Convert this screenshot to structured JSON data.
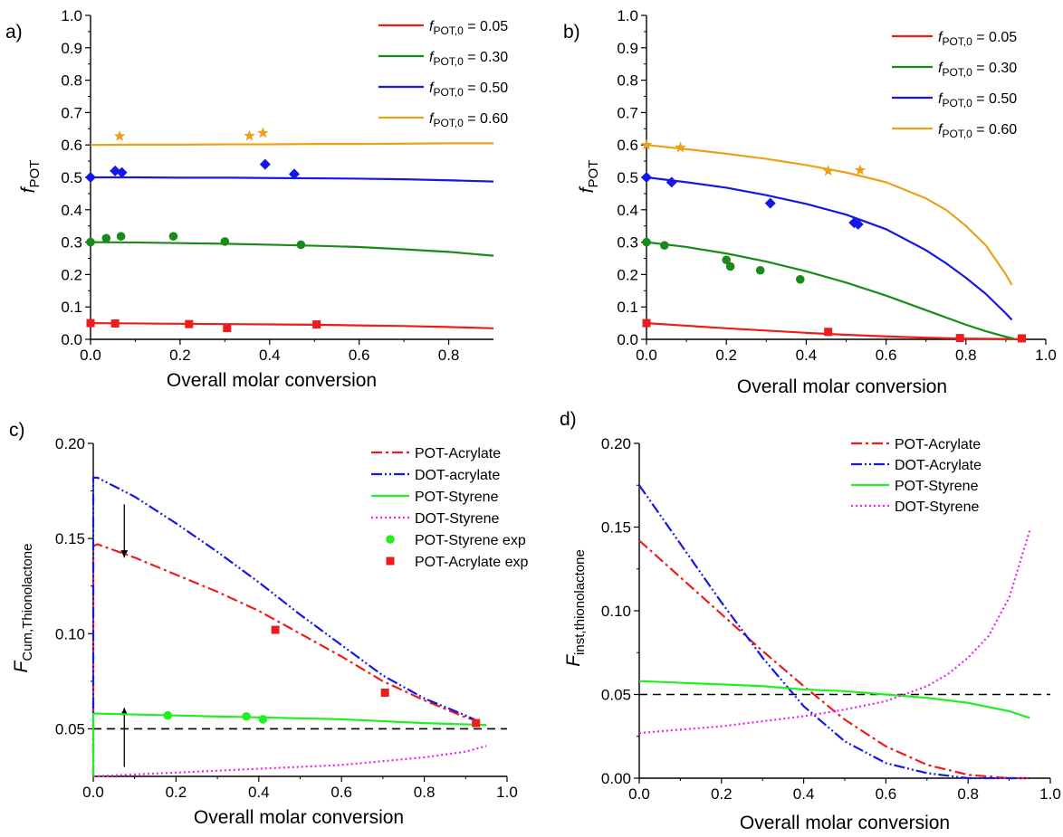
{
  "figure": {
    "colors": {
      "red": "#ee1c1c",
      "green": "#1a8a1a",
      "blue": "#1616e6",
      "orange": "#eaa21a",
      "bright_green": "#22ee22",
      "magenta": "#ee22ee",
      "black": "#000000"
    }
  },
  "chart_data": [
    {
      "panel_label": "a)",
      "type": "line",
      "xlabel": "Overall molar conversion",
      "ylabel_main": "f",
      "ylabel_sub": "POT",
      "xlim": [
        0,
        0.9
      ],
      "ylim": [
        0,
        1.0
      ],
      "xticks": [
        0,
        0.2,
        0.4,
        0.6,
        0.8
      ],
      "xtick_labels": [
        "0.0",
        "0.2",
        "0.4",
        "0.6",
        "0.8"
      ],
      "yticks": [
        0,
        0.1,
        0.2,
        0.3,
        0.4,
        0.5,
        0.6,
        0.7,
        0.8,
        0.9,
        1.0
      ],
      "ytick_labels": [
        "0.0",
        "0.1",
        "0.2",
        "0.3",
        "0.4",
        "0.5",
        "0.6",
        "0.7",
        "0.8",
        "0.9",
        "1.0"
      ],
      "legend": "top-right",
      "series": [
        {
          "name": "POT,0",
          "label_prefix": "f",
          "label_sub": "POT,0",
          "label_value": " = 0.05",
          "color": "#ee1c1c",
          "style": "solid",
          "marker": "square",
          "x": [
            0,
            0.1,
            0.2,
            0.3,
            0.4,
            0.5,
            0.6,
            0.7,
            0.8,
            0.9
          ],
          "y": [
            0.05,
            0.049,
            0.048,
            0.047,
            0.046,
            0.045,
            0.043,
            0.041,
            0.038,
            0.034
          ],
          "points_x": [
            0.0,
            0.055,
            0.22,
            0.305,
            0.505
          ],
          "points_y": [
            0.05,
            0.049,
            0.047,
            0.035,
            0.046
          ]
        },
        {
          "name": "POT,0",
          "label_prefix": "f",
          "label_sub": "POT,0",
          "label_value": " = 0.30",
          "color": "#1a8a1a",
          "style": "solid",
          "marker": "circle",
          "x": [
            0,
            0.1,
            0.2,
            0.3,
            0.4,
            0.5,
            0.6,
            0.7,
            0.8,
            0.9
          ],
          "y": [
            0.3,
            0.299,
            0.297,
            0.295,
            0.292,
            0.289,
            0.285,
            0.278,
            0.27,
            0.258
          ],
          "points_x": [
            0.0,
            0.035,
            0.068,
            0.185,
            0.3,
            0.47
          ],
          "points_y": [
            0.3,
            0.312,
            0.318,
            0.318,
            0.302,
            0.292
          ]
        },
        {
          "name": "POT,0",
          "label_prefix": "f",
          "label_sub": "POT,0",
          "label_value": " = 0.50",
          "color": "#1616e6",
          "style": "solid",
          "marker": "diamond",
          "x": [
            0,
            0.1,
            0.2,
            0.3,
            0.4,
            0.5,
            0.6,
            0.7,
            0.8,
            0.9
          ],
          "y": [
            0.5,
            0.5,
            0.499,
            0.499,
            0.498,
            0.497,
            0.496,
            0.494,
            0.491,
            0.487
          ],
          "points_x": [
            0.0,
            0.055,
            0.07,
            0.39,
            0.455
          ],
          "points_y": [
            0.5,
            0.52,
            0.515,
            0.54,
            0.51
          ]
        },
        {
          "name": "POT,0",
          "label_prefix": "f",
          "label_sub": "POT,0",
          "label_value": " = 0.60",
          "color": "#eaa21a",
          "style": "solid",
          "marker": "star",
          "x": [
            0,
            0.1,
            0.2,
            0.3,
            0.4,
            0.5,
            0.6,
            0.7,
            0.8,
            0.9
          ],
          "y": [
            0.6,
            0.601,
            0.601,
            0.602,
            0.602,
            0.603,
            0.603,
            0.604,
            0.605,
            0.605
          ],
          "points_x": [
            0.065,
            0.355,
            0.385
          ],
          "points_y": [
            0.627,
            0.628,
            0.637
          ]
        }
      ]
    },
    {
      "panel_label": "b)",
      "type": "line",
      "xlabel": "Overall molar conversion",
      "ylabel_main": "f",
      "ylabel_sub": "POT",
      "xlim": [
        0,
        1.0
      ],
      "ylim": [
        0,
        1.0
      ],
      "xticks": [
        0,
        0.2,
        0.4,
        0.6,
        0.8,
        1.0
      ],
      "xtick_labels": [
        "0.0",
        "0.2",
        "0.4",
        "0.6",
        "0.8",
        "1.0"
      ],
      "yticks": [
        0,
        0.1,
        0.2,
        0.3,
        0.4,
        0.5,
        0.6,
        0.7,
        0.8,
        0.9,
        1.0
      ],
      "ytick_labels": [
        "0.0",
        "0.1",
        "0.2",
        "0.3",
        "0.4",
        "0.5",
        "0.6",
        "0.7",
        "0.8",
        "0.9",
        "1.0"
      ],
      "legend": "top-right",
      "series": [
        {
          "name": "POT,0",
          "label_prefix": "f",
          "label_sub": "POT,0",
          "label_value": " = 0.05",
          "color": "#ee1c1c",
          "style": "solid",
          "marker": "square",
          "x": [
            0,
            0.1,
            0.2,
            0.3,
            0.4,
            0.5,
            0.6,
            0.7,
            0.8,
            0.9,
            0.95
          ],
          "y": [
            0.05,
            0.042,
            0.034,
            0.027,
            0.02,
            0.014,
            0.009,
            0.005,
            0.002,
            0.001,
            0.0
          ],
          "points_x": [
            0.0,
            0.455,
            0.785,
            0.94
          ],
          "points_y": [
            0.05,
            0.023,
            0.004,
            0.003
          ]
        },
        {
          "name": "POT,0",
          "label_prefix": "f",
          "label_sub": "POT,0",
          "label_value": " = 0.30",
          "color": "#1a8a1a",
          "style": "solid",
          "marker": "circle",
          "x": [
            0,
            0.1,
            0.2,
            0.3,
            0.4,
            0.5,
            0.6,
            0.7,
            0.8,
            0.85,
            0.9,
            0.92
          ],
          "y": [
            0.3,
            0.285,
            0.265,
            0.24,
            0.21,
            0.175,
            0.135,
            0.09,
            0.045,
            0.025,
            0.008,
            0.002
          ],
          "points_x": [
            0.0,
            0.045,
            0.2,
            0.21,
            0.285,
            0.385
          ],
          "points_y": [
            0.3,
            0.29,
            0.245,
            0.225,
            0.213,
            0.185
          ]
        },
        {
          "name": "POT,0",
          "label_prefix": "f",
          "label_sub": "POT,0",
          "label_value": " = 0.50",
          "color": "#1616e6",
          "style": "solid",
          "marker": "diamond",
          "x": [
            0,
            0.1,
            0.2,
            0.3,
            0.4,
            0.5,
            0.6,
            0.7,
            0.75,
            0.8,
            0.85,
            0.9,
            0.915
          ],
          "y": [
            0.5,
            0.485,
            0.468,
            0.445,
            0.418,
            0.385,
            0.34,
            0.275,
            0.235,
            0.19,
            0.14,
            0.08,
            0.06
          ],
          "points_x": [
            0.0,
            0.063,
            0.31,
            0.52,
            0.53
          ],
          "points_y": [
            0.5,
            0.485,
            0.42,
            0.36,
            0.355
          ]
        },
        {
          "name": "POT,0",
          "label_prefix": "f",
          "label_sub": "POT,0",
          "label_value": " = 0.60",
          "color": "#eaa21a",
          "style": "solid",
          "marker": "star",
          "x": [
            0,
            0.1,
            0.2,
            0.3,
            0.4,
            0.5,
            0.6,
            0.7,
            0.75,
            0.8,
            0.85,
            0.9,
            0.915
          ],
          "y": [
            0.6,
            0.587,
            0.573,
            0.557,
            0.538,
            0.515,
            0.485,
            0.435,
            0.4,
            0.35,
            0.29,
            0.2,
            0.168
          ],
          "points_x": [
            0.0,
            0.085,
            0.455,
            0.535
          ],
          "points_y": [
            0.6,
            0.592,
            0.52,
            0.522
          ]
        }
      ]
    },
    {
      "panel_label": "c)",
      "type": "line",
      "xlabel": "Overall molar conversion",
      "ylabel_main": "F",
      "ylabel_sub": "Cum,Thionolactone",
      "xlim": [
        0,
        1.0
      ],
      "ylim": [
        0.025,
        0.2
      ],
      "xticks": [
        0,
        0.2,
        0.4,
        0.6,
        0.8,
        1.0
      ],
      "xtick_labels": [
        "0.0",
        "0.2",
        "0.4",
        "0.6",
        "0.8",
        "1.0"
      ],
      "yticks": [
        0.05,
        0.1,
        0.15,
        0.2
      ],
      "ytick_labels": [
        "0.05",
        "0.10",
        "0.15",
        "0.20"
      ],
      "reference_line": 0.05,
      "arrows": [
        {
          "x": 0.075,
          "from_y": 0.168,
          "to_y": 0.14
        },
        {
          "x": 0.075,
          "from_y": 0.03,
          "to_y": 0.061
        }
      ],
      "legend": "top-right",
      "series": [
        {
          "name": "POT-Acrylate",
          "color": "#ee1c1c",
          "style": "dashdot",
          "x": [
            0,
            0.0,
            0.01,
            0.1,
            0.2,
            0.3,
            0.4,
            0.5,
            0.6,
            0.7,
            0.8,
            0.9,
            0.93
          ],
          "y": [
            0.025,
            0.146,
            0.147,
            0.14,
            0.131,
            0.122,
            0.112,
            0.1,
            0.088,
            0.075,
            0.065,
            0.056,
            0.054
          ]
        },
        {
          "name": "DOT-acrylate",
          "color": "#1616e6",
          "style": "dashdotdot",
          "x": [
            0,
            0.0,
            0.01,
            0.1,
            0.2,
            0.3,
            0.4,
            0.5,
            0.6,
            0.7,
            0.8,
            0.9,
            0.93
          ],
          "y": [
            0.025,
            0.182,
            0.182,
            0.172,
            0.158,
            0.143,
            0.127,
            0.11,
            0.094,
            0.078,
            0.066,
            0.057,
            0.054
          ]
        },
        {
          "name": "POT-Styrene",
          "color": "#22ee22",
          "style": "solid",
          "x": [
            0,
            0.0,
            0.01,
            0.2,
            0.4,
            0.6,
            0.8,
            0.95
          ],
          "y": [
            0.025,
            0.058,
            0.058,
            0.057,
            0.056,
            0.055,
            0.053,
            0.052
          ]
        },
        {
          "name": "DOT-Styrene",
          "color": "#ee22ee",
          "style": "dotted",
          "x": [
            0,
            0.1,
            0.2,
            0.3,
            0.4,
            0.5,
            0.6,
            0.7,
            0.8,
            0.9,
            0.95
          ],
          "y": [
            0.025,
            0.026,
            0.027,
            0.028,
            0.029,
            0.03,
            0.031,
            0.033,
            0.035,
            0.038,
            0.041
          ]
        },
        {
          "name": "POT-Styrene exp",
          "color": "#22ee22",
          "style": "none",
          "marker": "circle",
          "points_x": [
            0.18,
            0.37,
            0.41
          ],
          "points_y": [
            0.057,
            0.0565,
            0.055
          ]
        },
        {
          "name": "POT-Acrylate exp",
          "color": "#ee1c1c",
          "style": "none",
          "marker": "square",
          "points_x": [
            0.44,
            0.705,
            0.925
          ],
          "points_y": [
            0.102,
            0.069,
            0.053
          ]
        }
      ]
    },
    {
      "panel_label": "d)",
      "type": "line",
      "xlabel": "Overall molar conversion",
      "ylabel_main": "F",
      "ylabel_sub": "inst,thionolactone",
      "xlim": [
        0,
        1.0
      ],
      "ylim": [
        0,
        0.2
      ],
      "xticks": [
        0,
        0.2,
        0.4,
        0.6,
        0.8,
        1.0
      ],
      "xtick_labels": [
        "0.0",
        "0.2",
        "0.4",
        "0.6",
        "0.8",
        "1.0"
      ],
      "yticks": [
        0,
        0.05,
        0.1,
        0.15,
        0.2
      ],
      "ytick_labels": [
        "0.00",
        "0.05",
        "0.10",
        "0.15",
        "0.20"
      ],
      "reference_line": 0.05,
      "legend": "top-right",
      "series": [
        {
          "name": "POT-Acrylate",
          "color": "#ee1c1c",
          "style": "dashdot",
          "x": [
            0,
            0.1,
            0.2,
            0.3,
            0.4,
            0.5,
            0.6,
            0.7,
            0.8,
            0.9,
            0.95
          ],
          "y": [
            0.142,
            0.12,
            0.098,
            0.076,
            0.055,
            0.035,
            0.019,
            0.008,
            0.002,
            0.0,
            0.0
          ]
        },
        {
          "name": "DOT-Acrylate",
          "color": "#1616e6",
          "style": "dashdotdot",
          "x": [
            0,
            0.1,
            0.2,
            0.3,
            0.4,
            0.5,
            0.6,
            0.7,
            0.8,
            0.9,
            0.95
          ],
          "y": [
            0.175,
            0.14,
            0.105,
            0.072,
            0.043,
            0.022,
            0.009,
            0.003,
            0.0,
            0.0,
            0.0
          ]
        },
        {
          "name": "POT-Styrene",
          "color": "#22ee22",
          "style": "solid",
          "x": [
            0,
            0.1,
            0.2,
            0.3,
            0.4,
            0.5,
            0.6,
            0.7,
            0.8,
            0.9,
            0.95
          ],
          "y": [
            0.058,
            0.057,
            0.056,
            0.055,
            0.053,
            0.052,
            0.05,
            0.048,
            0.045,
            0.04,
            0.036
          ]
        },
        {
          "name": "DOT-Styrene",
          "color": "#ee22ee",
          "style": "dotted",
          "x": [
            0,
            0.1,
            0.2,
            0.3,
            0.4,
            0.5,
            0.6,
            0.7,
            0.75,
            0.8,
            0.85,
            0.9,
            0.95
          ],
          "y": [
            0.027,
            0.029,
            0.031,
            0.034,
            0.037,
            0.041,
            0.046,
            0.055,
            0.062,
            0.072,
            0.085,
            0.108,
            0.148
          ]
        }
      ]
    }
  ]
}
